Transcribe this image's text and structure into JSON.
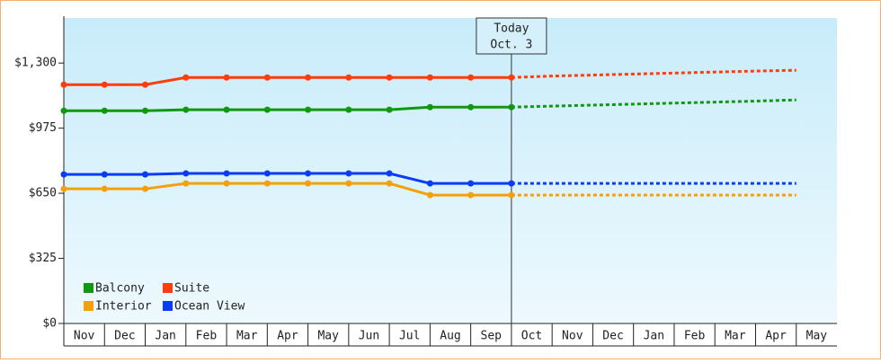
{
  "chart_data": {
    "type": "line",
    "categories": [
      "Nov",
      "Dec",
      "Jan",
      "Feb",
      "Mar",
      "Apr",
      "May",
      "Jun",
      "Jul",
      "Aug",
      "Sep",
      "Oct",
      "Nov",
      "Dec",
      "Jan",
      "Feb",
      "Mar",
      "Apr",
      "May"
    ],
    "series": [
      {
        "name": "Balcony",
        "color": "#109810",
        "values": [
          1062,
          1062,
          1062,
          1067,
          1067,
          1067,
          1067,
          1067,
          1067,
          1080,
          1080,
          1080,
          1085,
          1090,
          1095,
          1100,
          1105,
          1110,
          1116
        ]
      },
      {
        "name": "Suite",
        "color": "#ff3c0a",
        "values": [
          1192,
          1192,
          1192,
          1228,
          1228,
          1228,
          1228,
          1228,
          1228,
          1228,
          1228,
          1228,
          1235,
          1240,
          1245,
          1250,
          1255,
          1260,
          1264
        ]
      },
      {
        "name": "Interior",
        "color": "#f5a00a",
        "values": [
          672,
          672,
          672,
          699,
          699,
          699,
          699,
          699,
          699,
          641,
          641,
          641,
          641,
          641,
          641,
          641,
          641,
          641,
          641
        ]
      },
      {
        "name": "Ocean View",
        "color": "#0a3cf5",
        "values": [
          744,
          744,
          744,
          749,
          749,
          749,
          749,
          749,
          749,
          699,
          699,
          699,
          699,
          699,
          699,
          699,
          699,
          699,
          699
        ]
      }
    ],
    "ylim": [
      0,
      1525
    ],
    "yticks": [
      {
        "value": 0,
        "label": "$0"
      },
      {
        "value": 325,
        "label": "$325"
      },
      {
        "value": 650,
        "label": "$650"
      },
      {
        "value": 975,
        "label": "$975"
      },
      {
        "value": 1300,
        "label": "$1,300"
      }
    ],
    "annotation": {
      "text": [
        "Today",
        "Oct. 3"
      ],
      "at": "Oct"
    },
    "legend": "lower-left"
  }
}
